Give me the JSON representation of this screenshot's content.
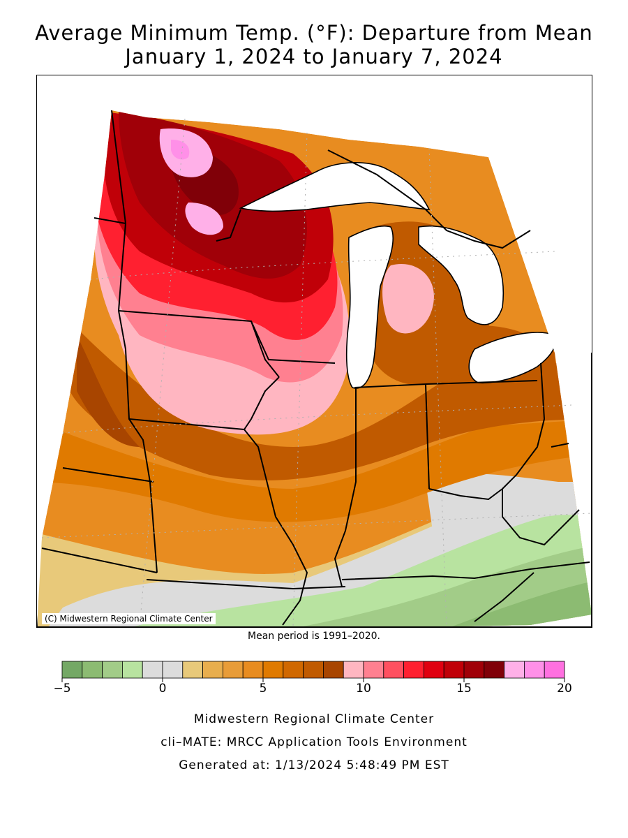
{
  "title": {
    "line1": "Average Minimum Temp. (°F): Departure from Mean",
    "line2": "January 1, 2024 to January 7, 2024"
  },
  "map": {
    "credit": "(C) Midwestern Regional Climate Center",
    "note": "Mean period is 1991–2020.",
    "background_color": "#ffffff",
    "lake_color": "#ffffff",
    "border_color": "#000000"
  },
  "legend": {
    "min": -5,
    "max": 20,
    "tick_labels": [
      "−5",
      "0",
      "5",
      "10",
      "15",
      "20"
    ],
    "tick_values": [
      -5,
      0,
      5,
      10,
      15,
      20
    ],
    "colors": [
      "#74a865",
      "#8cbb72",
      "#a2cc88",
      "#b8e3a0",
      "#dcdcdc",
      "#dcdcdc",
      "#e8c97a",
      "#e8ae4e",
      "#e89c38",
      "#e88c20",
      "#e07a00",
      "#d06800",
      "#c05a00",
      "#a84500",
      "#ffb6c1",
      "#ff8090",
      "#ff5060",
      "#ff2030",
      "#e00010",
      "#c00008",
      "#a00008",
      "#800008",
      "#ffb0e8",
      "#ff90e8",
      "#ff70e0"
    ]
  },
  "footer": {
    "line1": "Midwestern Regional Climate Center",
    "line2": "cli–MATE: MRCC Application Tools Environment",
    "line3": "Generated at: 1/13/2024 5:48:49 PM EST"
  }
}
